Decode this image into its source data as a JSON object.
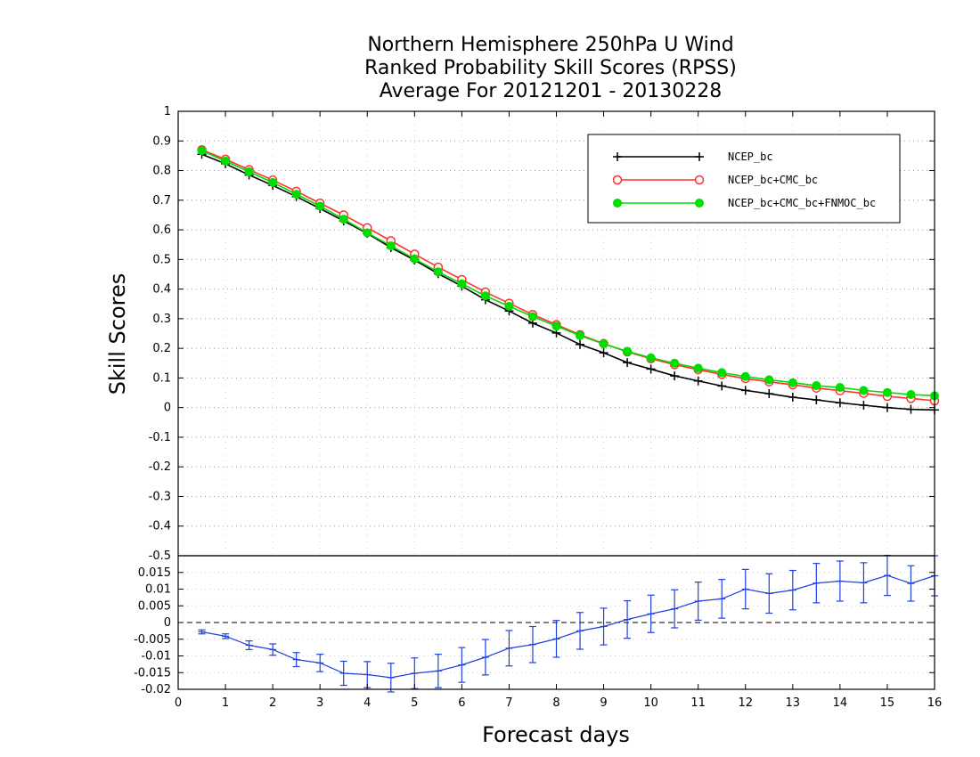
{
  "chart_data": {
    "type": "line",
    "title_lines": [
      "Northern Hemisphere 250hPa U Wind",
      "Ranked Probability Skill Scores (RPSS)",
      " Average For 20121201 - 20130228"
    ],
    "xlabel": "Forecast days",
    "ylabel": "Skill Scores",
    "x": [
      0.5,
      1,
      1.5,
      2,
      2.5,
      3,
      3.5,
      4,
      4.5,
      5,
      5.5,
      6,
      6.5,
      7,
      7.5,
      8,
      8.5,
      9,
      9.5,
      10,
      10.5,
      11,
      11.5,
      12,
      12.5,
      13,
      13.5,
      14,
      14.5,
      15,
      15.5,
      16
    ],
    "xlim": [
      0,
      16
    ],
    "xticks": [
      "0",
      "1",
      "2",
      "3",
      "4",
      "5",
      "6",
      "7",
      "8",
      "9",
      "10",
      "11",
      "12",
      "13",
      "14",
      "15",
      "16"
    ],
    "top_panel": {
      "ylim": [
        -0.5,
        1
      ],
      "yticks": [
        "-0.5",
        "-0.4",
        "-0.3",
        "-0.2",
        "-0.1",
        "0",
        "0.1",
        "0.2",
        "0.3",
        "0.4",
        "0.5",
        "0.6",
        "0.7",
        "0.8",
        "0.9",
        "1"
      ],
      "grid": true,
      "legend_position": "top-right",
      "series": [
        {
          "name": "NCEP_bc",
          "color": "#000000",
          "marker": "plus",
          "values": [
            0.855,
            0.823,
            0.785,
            0.75,
            0.712,
            0.672,
            0.63,
            0.588,
            0.54,
            0.498,
            0.452,
            0.41,
            0.364,
            0.326,
            0.285,
            0.252,
            0.213,
            0.185,
            0.152,
            0.13,
            0.107,
            0.09,
            0.073,
            0.058,
            0.047,
            0.035,
            0.026,
            0.016,
            0.008,
            0.0,
            -0.006,
            -0.008
          ]
        },
        {
          "name": "NCEP_bc+CMC_bc",
          "color": "#ff3030",
          "marker": "open-circle",
          "values": [
            0.87,
            0.838,
            0.803,
            0.768,
            0.73,
            0.69,
            0.65,
            0.607,
            0.563,
            0.518,
            0.474,
            0.432,
            0.39,
            0.352,
            0.314,
            0.28,
            0.246,
            0.216,
            0.188,
            0.165,
            0.145,
            0.128,
            0.112,
            0.098,
            0.087,
            0.077,
            0.066,
            0.057,
            0.048,
            0.038,
            0.031,
            0.023
          ]
        },
        {
          "name": "NCEP_bc+CMC_bc+FNMOC_bc",
          "color": "#00dd00",
          "marker": "filled-circle",
          "values": [
            0.867,
            0.832,
            0.796,
            0.76,
            0.72,
            0.68,
            0.636,
            0.59,
            0.546,
            0.502,
            0.458,
            0.418,
            0.377,
            0.342,
            0.307,
            0.275,
            0.243,
            0.215,
            0.19,
            0.168,
            0.15,
            0.133,
            0.118,
            0.105,
            0.094,
            0.084,
            0.074,
            0.068,
            0.058,
            0.051,
            0.044,
            0.04
          ]
        }
      ]
    },
    "bottom_panel": {
      "ylim": [
        -0.02,
        0.02
      ],
      "yticks": [
        "-0.02",
        "-0.015",
        "-0.01",
        "-0.005",
        "0",
        "0.005",
        "0.01",
        "0.015"
      ],
      "reference_line": 0,
      "series": [
        {
          "color": "#2040e0",
          "marker": "plus",
          "values": [
            -0.0028,
            -0.0041,
            -0.0068,
            -0.0081,
            -0.0111,
            -0.0121,
            -0.0152,
            -0.0156,
            -0.0165,
            -0.0152,
            -0.0145,
            -0.0127,
            -0.0104,
            -0.0077,
            -0.0066,
            -0.0049,
            -0.0025,
            -0.0012,
            0.0009,
            0.0026,
            0.0041,
            0.0064,
            0.0071,
            0.01,
            0.0087,
            0.0097,
            0.0118,
            0.0124,
            0.0119,
            0.0141,
            0.0117,
            0.014
          ],
          "error": [
            0.0006,
            0.0007,
            0.0013,
            0.0017,
            0.0021,
            0.0026,
            0.0036,
            0.0039,
            0.0043,
            0.0046,
            0.005,
            0.0052,
            0.0053,
            0.0053,
            0.0054,
            0.0055,
            0.0055,
            0.0055,
            0.0056,
            0.0056,
            0.0057,
            0.0057,
            0.0058,
            0.0059,
            0.0059,
            0.0059,
            0.0059,
            0.006,
            0.006,
            0.006,
            0.0053,
            0.006
          ]
        }
      ]
    }
  }
}
